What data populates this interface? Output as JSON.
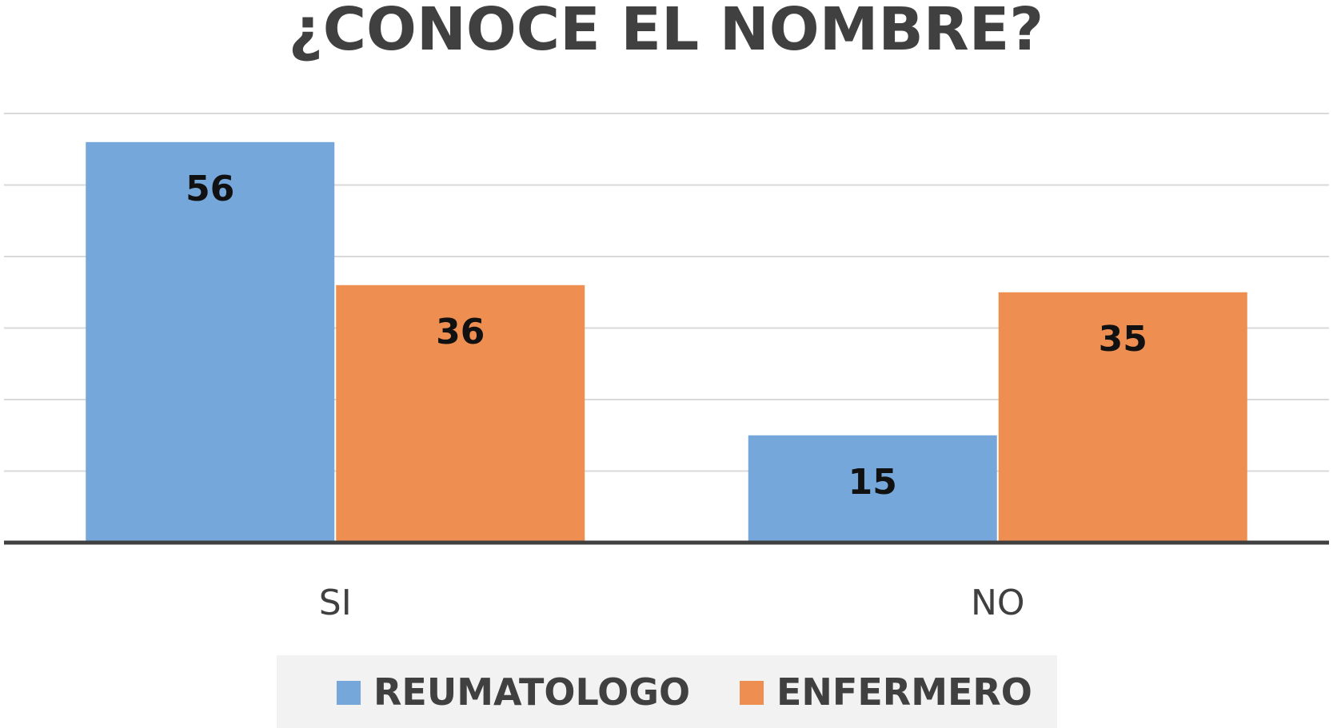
{
  "chart_data": {
    "type": "bar",
    "title": "¿CONOCE EL NOMBRE?",
    "xlabel": "",
    "ylabel": "",
    "categories": [
      "SI",
      "NO"
    ],
    "series": [
      {
        "name": "REUMATOLOGO",
        "values": [
          56,
          15
        ],
        "color": "#75a7da"
      },
      {
        "name": "ENFERMERO",
        "values": [
          36,
          35
        ],
        "color": "#ee8f51"
      }
    ],
    "ylim": [
      0,
      60
    ],
    "grid": true,
    "legend": "bottom",
    "data_labels": true
  }
}
